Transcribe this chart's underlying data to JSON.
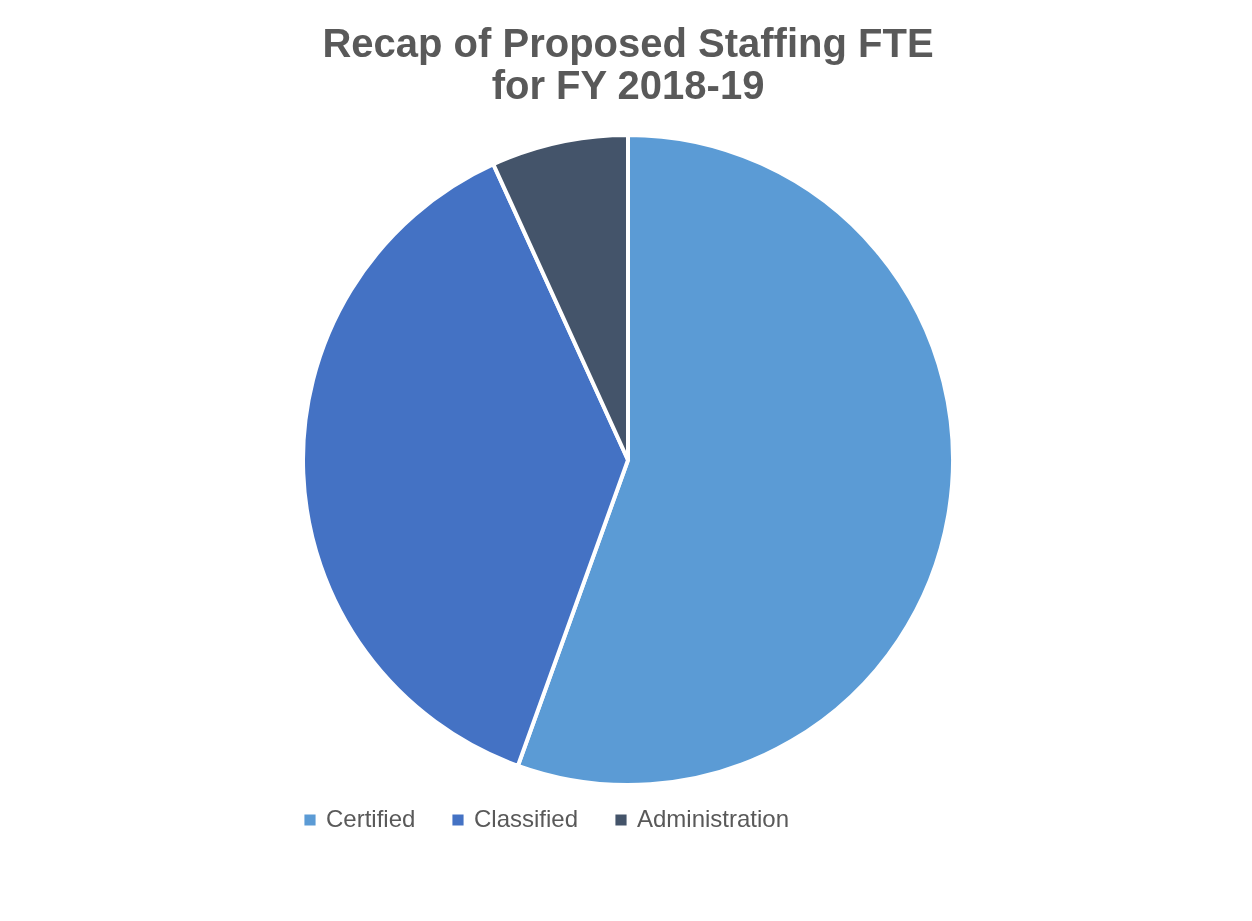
{
  "chart_data": {
    "type": "pie",
    "title": "Recap of Proposed Staffing FTE\nfor FY 2018-19",
    "categories": [
      "Certified",
      "Classified",
      "Administration"
    ],
    "values": [
      55.5,
      37.7,
      6.8
    ],
    "colors": [
      "#5b9bd5",
      "#4472c4",
      "#44546a"
    ],
    "legend": "bottom"
  }
}
